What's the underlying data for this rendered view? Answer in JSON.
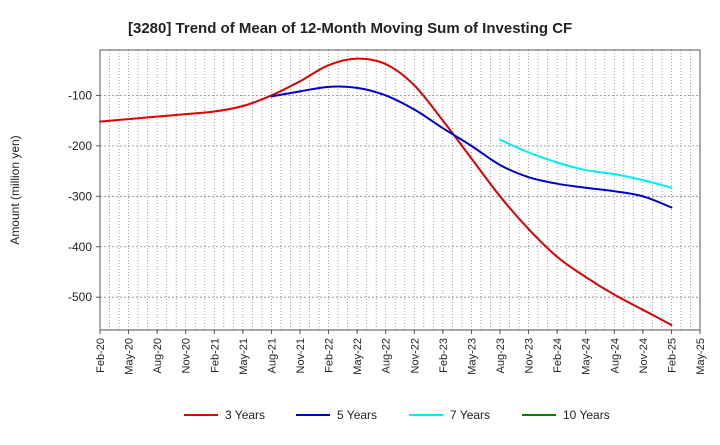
{
  "chart_data": {
    "type": "line",
    "title": "[3280]  Trend of Mean of 12-Month Moving Sum of Investing CF",
    "xlabel": "",
    "ylabel": "Amount (million yen)",
    "ylim": [
      -565,
      -10
    ],
    "yticks": [
      -100,
      -200,
      -300,
      -400,
      -500
    ],
    "ytick_labels": [
      "-100",
      "-200",
      "-300",
      "-400",
      "-500"
    ],
    "categories": [
      "Feb-20",
      "May-20",
      "Aug-20",
      "Nov-20",
      "Feb-21",
      "May-21",
      "Aug-21",
      "Nov-21",
      "Feb-22",
      "May-22",
      "Aug-22",
      "Nov-22",
      "Feb-23",
      "May-23",
      "Aug-23",
      "Nov-23",
      "Feb-24",
      "May-24",
      "Aug-24",
      "Nov-24",
      "Feb-25",
      "May-25"
    ],
    "grid": true,
    "legend_position": "bottom",
    "series": [
      {
        "name": "3 Years",
        "color": "#dd0000",
        "values": [
          -152,
          -147,
          -142,
          -137,
          -132,
          -121,
          -100,
          -72,
          -40,
          -27,
          -38,
          -80,
          -150,
          -225,
          -300,
          -365,
          -420,
          -460,
          -495,
          -525,
          -555,
          null
        ]
      },
      {
        "name": "5 Years",
        "color": "#0000cc",
        "values": [
          null,
          null,
          null,
          null,
          null,
          null,
          -102,
          -92,
          -83,
          -85,
          -100,
          -128,
          -165,
          -200,
          -238,
          -262,
          -275,
          -283,
          -290,
          -300,
          -322,
          null
        ]
      },
      {
        "name": "7 Years",
        "color": "#00eeee",
        "values": [
          null,
          null,
          null,
          null,
          null,
          null,
          null,
          null,
          null,
          null,
          null,
          null,
          null,
          null,
          -188,
          -213,
          -233,
          -248,
          -256,
          -268,
          -283,
          null
        ]
      },
      {
        "name": "10 Years",
        "color": "#008000",
        "values": [
          null,
          null,
          null,
          null,
          null,
          null,
          null,
          null,
          null,
          null,
          null,
          null,
          null,
          null,
          null,
          null,
          null,
          null,
          null,
          null,
          null,
          null
        ]
      }
    ]
  }
}
